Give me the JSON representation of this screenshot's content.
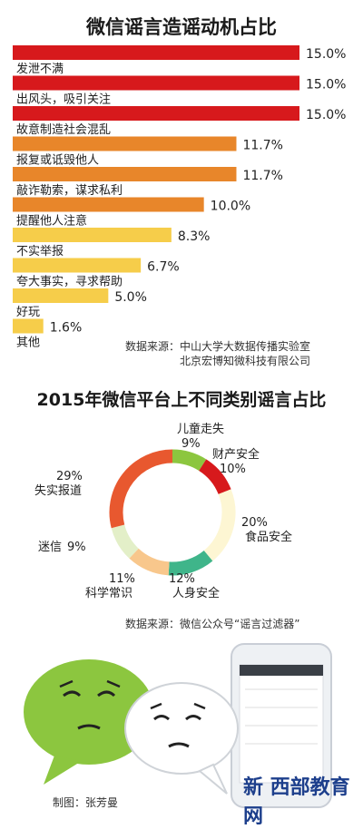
{
  "chart_data": [
    {
      "type": "bar",
      "title": "微信谣言造谣动机占比",
      "categories": [
        "发泄不满",
        "出风头，吸引关注",
        "故意制造社会混乱",
        "报复或诋毁他人",
        "敲诈勒索，谋求私利",
        "提醒他人注意",
        "不实举报",
        "夸大事实，寻求帮助",
        "好玩",
        "其他"
      ],
      "values": [
        15.0,
        15.0,
        15.0,
        11.7,
        11.7,
        10.0,
        8.3,
        6.7,
        5.0,
        1.6
      ],
      "value_labels": [
        "15.0%",
        "15.0%",
        "15.0%",
        "11.7%",
        "11.7%",
        "10.0%",
        "8.3%",
        "6.7%",
        "5.0%",
        "1.6%"
      ],
      "colors": [
        "#d7191c",
        "#d7191c",
        "#d7191c",
        "#e8862a",
        "#e8862a",
        "#e8862a",
        "#f6cd4a",
        "#f6cd4a",
        "#f6cd4a",
        "#f6cd4a"
      ],
      "xlim": [
        0,
        15.0
      ]
    },
    {
      "type": "pie",
      "title": "2015年微信平台上不同类别谣言占比",
      "categories": [
        "儿童走失",
        "财产安全",
        "食品安全",
        "人身安全",
        "科学常识",
        "迷信",
        "失实报道"
      ],
      "values": [
        9,
        10,
        20,
        12,
        11,
        9,
        29
      ],
      "value_labels": [
        "9%",
        "10%",
        "20%",
        "12%",
        "11%",
        "9%",
        "29%"
      ],
      "colors": [
        "#8cc63f",
        "#d7191c",
        "#fdf6d3",
        "#3fb58a",
        "#f8c78c",
        "#e3efc8",
        "#e8582f"
      ]
    }
  ],
  "source1": {
    "label": "数据来源：",
    "line1": "中山大学大数据传播实验室",
    "line2": "北京宏博知微科技有限公司"
  },
  "source2": "数据来源：微信公众号“谣言过滤器”",
  "credit": "制图：张芳曼",
  "watermark": "新 西部教育网"
}
